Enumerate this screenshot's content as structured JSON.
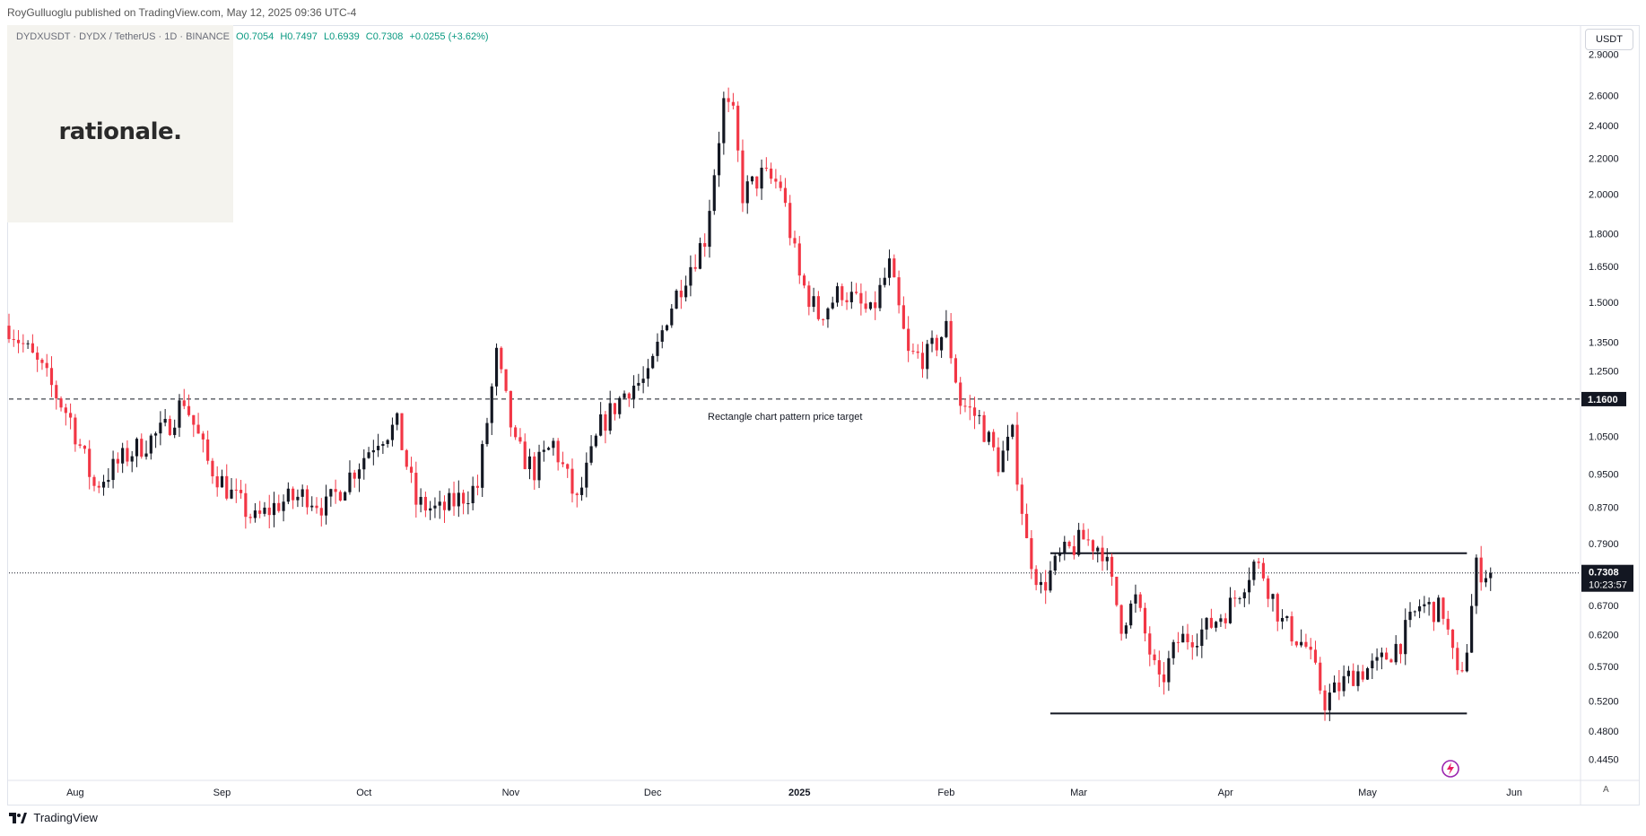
{
  "header": {
    "published": "RoyGulluoglu published on TradingView.com, May 12, 2025 09:36 UTC-4"
  },
  "legend": {
    "symbol": "DYDXUSDT · DYDX / TetherUS · 1D · BINANCE",
    "open": "O0.7054",
    "high": "H0.7497",
    "low": "L0.6939",
    "close": "C0.7308",
    "change": "+0.0255 (+3.62%)"
  },
  "logo": {
    "text": "rationale."
  },
  "currency": "USDT",
  "annotation": "Rectangle chart pattern price target",
  "footer": {
    "brand": "TradingView"
  },
  "axis_controls": {
    "auto": "A"
  },
  "colors": {
    "up": "#131722",
    "down": "#f23645",
    "grid": "#f0f3fa",
    "axis_text": "#131722"
  },
  "chart_data": {
    "type": "candlestick",
    "scale": "log",
    "x_ticks": [
      {
        "label": "Aug",
        "date": "2024-08-01"
      },
      {
        "label": "Sep",
        "date": "2024-09-01"
      },
      {
        "label": "Oct",
        "date": "2024-10-01"
      },
      {
        "label": "Nov",
        "date": "2024-11-01"
      },
      {
        "label": "Dec",
        "date": "2024-12-01"
      },
      {
        "label": "2025",
        "date": "2025-01-01"
      },
      {
        "label": "Feb",
        "date": "2025-02-01"
      },
      {
        "label": "Mar",
        "date": "2025-03-01"
      },
      {
        "label": "Apr",
        "date": "2025-04-01"
      },
      {
        "label": "May",
        "date": "2025-05-01"
      },
      {
        "label": "Jun",
        "date": "2025-06-01"
      }
    ],
    "y_ticks": [
      "2.9000",
      "2.6000",
      "2.4000",
      "2.2000",
      "2.0000",
      "1.8000",
      "1.6500",
      "1.5000",
      "1.3500",
      "1.2500",
      "1.0500",
      "0.9500",
      "0.8700",
      "0.7900",
      "0.6700",
      "0.6200",
      "0.5700",
      "0.5200",
      "0.4800",
      "0.4450"
    ],
    "y_range": [
      0.423,
      3.12
    ],
    "x_range": [
      "2024-07-18",
      "2025-06-15"
    ],
    "target_line": {
      "value": 1.16,
      "label": "1.1600"
    },
    "current_price": {
      "value": 0.7308,
      "label": "0.7308",
      "countdown": "10:23:57"
    },
    "rectangle": {
      "top": 0.77,
      "bottom": 0.503,
      "start": "2025-02-23",
      "end": "2025-05-22"
    },
    "anchors": [
      [
        "2024-07-18",
        1.41
      ],
      [
        "2024-07-25",
        1.25
      ],
      [
        "2024-07-31",
        1.1
      ],
      [
        "2024-08-05",
        0.92
      ],
      [
        "2024-08-12",
        1.0
      ],
      [
        "2024-08-20",
        1.07
      ],
      [
        "2024-08-24",
        1.16
      ],
      [
        "2024-08-29",
        0.98
      ],
      [
        "2024-09-03",
        0.9
      ],
      [
        "2024-09-08",
        0.84
      ],
      [
        "2024-09-13",
        0.88
      ],
      [
        "2024-09-19",
        0.9
      ],
      [
        "2024-09-23",
        0.87
      ],
      [
        "2024-09-30",
        0.98
      ],
      [
        "2024-10-04",
        1.05
      ],
      [
        "2024-10-08",
        1.08
      ],
      [
        "2024-10-12",
        0.88
      ],
      [
        "2024-10-17",
        0.86
      ],
      [
        "2024-10-25",
        0.92
      ],
      [
        "2024-10-29",
        1.3
      ],
      [
        "2024-11-02",
        1.02
      ],
      [
        "2024-11-06",
        0.96
      ],
      [
        "2024-11-10",
        1.03
      ],
      [
        "2024-11-15",
        0.88
      ],
      [
        "2024-11-20",
        1.08
      ],
      [
        "2024-11-26",
        1.2
      ],
      [
        "2024-11-30",
        1.22
      ],
      [
        "2024-12-04",
        1.45
      ],
      [
        "2024-12-08",
        1.62
      ],
      [
        "2024-12-12",
        1.78
      ],
      [
        "2024-12-16",
        2.55
      ],
      [
        "2024-12-18",
        2.45
      ],
      [
        "2024-12-20",
        2.0
      ],
      [
        "2024-12-24",
        2.1
      ],
      [
        "2024-12-28",
        2.05
      ],
      [
        "2025-01-01",
        1.6
      ],
      [
        "2025-01-05",
        1.45
      ],
      [
        "2025-01-10",
        1.55
      ],
      [
        "2025-01-16",
        1.45
      ],
      [
        "2025-01-20",
        1.65
      ],
      [
        "2025-01-24",
        1.3
      ],
      [
        "2025-01-28",
        1.3
      ],
      [
        "2025-02-01",
        1.4
      ],
      [
        "2025-02-04",
        1.15
      ],
      [
        "2025-02-08",
        1.1
      ],
      [
        "2025-02-12",
        0.98
      ],
      [
        "2025-02-15",
        1.05
      ],
      [
        "2025-02-18",
        0.79
      ],
      [
        "2025-02-21",
        0.7
      ],
      [
        "2025-02-25",
        0.76
      ],
      [
        "2025-03-02",
        0.8
      ],
      [
        "2025-03-06",
        0.78
      ],
      [
        "2025-03-10",
        0.64
      ],
      [
        "2025-03-13",
        0.68
      ],
      [
        "2025-03-18",
        0.54
      ],
      [
        "2025-03-22",
        0.61
      ],
      [
        "2025-03-28",
        0.63
      ],
      [
        "2025-04-02",
        0.67
      ],
      [
        "2025-04-07",
        0.75
      ],
      [
        "2025-04-09",
        0.73
      ],
      [
        "2025-04-13",
        0.64
      ],
      [
        "2025-04-18",
        0.6
      ],
      [
        "2025-04-22",
        0.52
      ],
      [
        "2025-04-28",
        0.56
      ],
      [
        "2025-05-03",
        0.57
      ],
      [
        "2025-05-08",
        0.61
      ],
      [
        "2025-05-12",
        0.67
      ],
      [
        "2025-05-17",
        0.66
      ],
      [
        "2025-05-20",
        0.55
      ],
      [
        "2025-05-22",
        0.6
      ],
      [
        "2025-05-24",
        0.74
      ],
      [
        "2025-05-27",
        0.73
      ]
    ]
  }
}
